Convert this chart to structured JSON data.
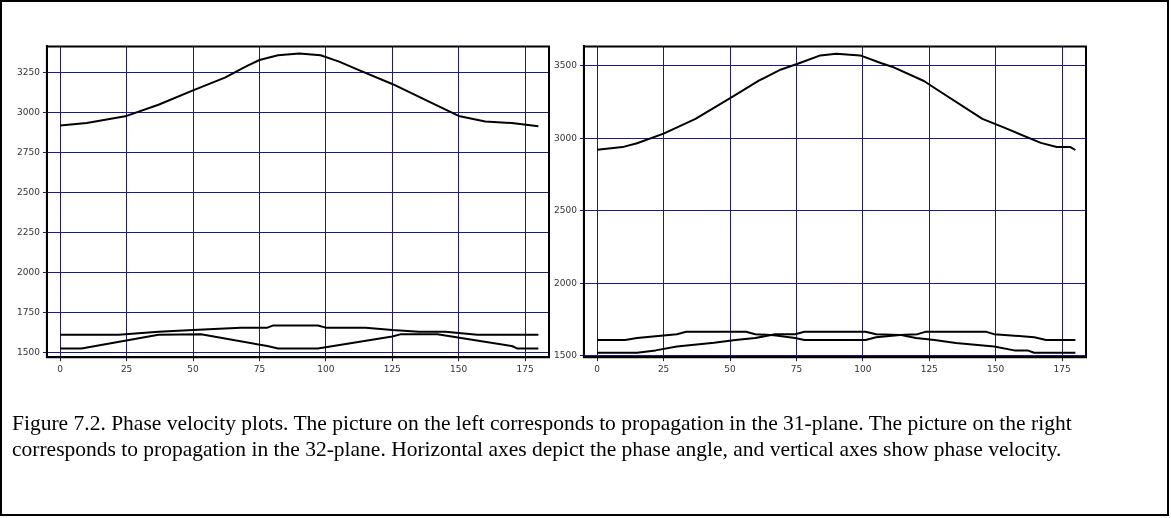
{
  "chart_data": [
    {
      "type": "line",
      "xlim": [
        -5,
        184
      ],
      "ylim": [
        1470,
        3415
      ],
      "xticks": [
        0,
        25,
        50,
        75,
        100,
        125,
        150,
        175
      ],
      "yticks": [
        1500,
        1750,
        2000,
        2250,
        2500,
        2750,
        3000,
        3250
      ],
      "grid": true,
      "legend": false,
      "marker": "none",
      "line_style": "solid",
      "series": [
        {
          "color": "#000000",
          "x": [
            0,
            10,
            25,
            37,
            50,
            62,
            70,
            75,
            82,
            90,
            98,
            105,
            112,
            125,
            140,
            150,
            160,
            170,
            180
          ],
          "values": [
            2920,
            2935,
            2980,
            3050,
            3140,
            3220,
            3290,
            3330,
            3360,
            3370,
            3360,
            3320,
            3270,
            3180,
            3060,
            2980,
            2945,
            2935,
            2915
          ]
        },
        {
          "color": "#000000",
          "x": [
            0,
            22,
            37,
            50,
            68,
            78,
            80,
            97,
            100,
            115,
            125,
            135,
            145,
            157,
            180
          ],
          "values": [
            1610,
            1610,
            1630,
            1640,
            1655,
            1655,
            1668,
            1668,
            1655,
            1655,
            1640,
            1630,
            1630,
            1610,
            1610
          ]
        },
        {
          "color": "#000000",
          "x": [
            0,
            8,
            37,
            53,
            78,
            82,
            97,
            125,
            128,
            142,
            170,
            172,
            180
          ],
          "values": [
            1525,
            1525,
            1610,
            1613,
            1540,
            1525,
            1525,
            1600,
            1613,
            1613,
            1540,
            1525,
            1525
          ]
        }
      ],
      "annotations": [
        "Figure 7.2. Phase velocity plots. The picture on the left corresponds to propagation in the 31-plane. The picture on the right corresponds to propagation in the 32-plane.  Horizontal axes depict the phase angle, and vertical axes show phase velocity."
      ]
    },
    {
      "type": "line",
      "xlim": [
        -5,
        184
      ],
      "ylim": [
        1490,
        3635
      ],
      "xticks": [
        0,
        25,
        50,
        75,
        100,
        125,
        150,
        175
      ],
      "yticks": [
        1500,
        2000,
        2500,
        3000,
        3500
      ],
      "grid": true,
      "legend": false,
      "marker": "none",
      "line_style": "solid",
      "series": [
        {
          "color": "#000000",
          "x": [
            0,
            9.5,
            15,
            25,
            37,
            51,
            61,
            69,
            76,
            84,
            90,
            99,
            107,
            111,
            123,
            127,
            145,
            153,
            167,
            173,
            178,
            180
          ],
          "values": [
            2922,
            2940,
            2967,
            3033,
            3135,
            3289,
            3400,
            3474,
            3519,
            3573,
            3585,
            3573,
            3519,
            3495,
            3396,
            3348,
            3135,
            3076,
            2969,
            2941,
            2941,
            2920
          ]
        },
        {
          "color": "#000000",
          "x": [
            0,
            10.5,
            15,
            30,
            33.5,
            56,
            59.5,
            66.6,
            74.5,
            78,
            101,
            105,
            114,
            120.6,
            123.5,
            146.5,
            149.4,
            164.5,
            169,
            180
          ],
          "values": [
            1609,
            1609,
            1622,
            1649,
            1665,
            1665,
            1649,
            1641,
            1622,
            1609,
            1609,
            1628,
            1644,
            1649,
            1665,
            1665,
            1649,
            1628,
            1609,
            1609
          ]
        },
        {
          "color": "#000000",
          "x": [
            0,
            15,
            22,
            30,
            44,
            52,
            59.5,
            67,
            74.5,
            78,
            101,
            105,
            114,
            120,
            127,
            135,
            149.4,
            157,
            162,
            164.5,
            180
          ],
          "values": [
            1521,
            1521,
            1537,
            1564,
            1590,
            1609,
            1622,
            1649,
            1649,
            1665,
            1665,
            1649,
            1644,
            1622,
            1609,
            1588,
            1564,
            1537,
            1537,
            1521,
            1521
          ]
        }
      ]
    }
  ]
}
